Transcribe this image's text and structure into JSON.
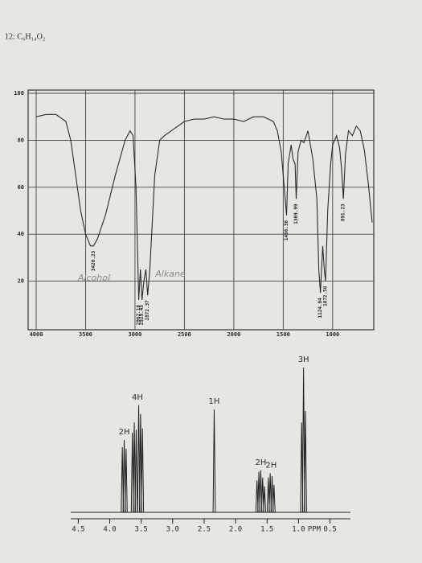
{
  "header": {
    "title": "12: C₆H₁₄O₂"
  },
  "chart_data": [
    {
      "type": "line",
      "x": [
        4000,
        3900,
        3800,
        3700,
        3650,
        3600,
        3550,
        3500,
        3450,
        3420,
        3380,
        3300,
        3200,
        3100,
        3050,
        3020,
        2990,
        2962,
        2945,
        2929,
        2910,
        2890,
        2872,
        2850,
        2800,
        2750,
        2700,
        2600,
        2500,
        2400,
        2300,
        2200,
        2100,
        2000,
        1900,
        1800,
        1700,
        1600,
        1560,
        1520,
        1490,
        1466,
        1450,
        1420,
        1400,
        1380,
        1369,
        1350,
        1320,
        1290,
        1250,
        1200,
        1160,
        1140,
        1124,
        1100,
        1085,
        1072,
        1050,
        1020,
        1000,
        960,
        930,
        910,
        891,
        870,
        840,
        800,
        760,
        720,
        680,
        640,
        600
      ],
      "values": [
        90,
        91,
        91,
        88,
        80,
        65,
        50,
        40,
        35,
        35,
        38,
        48,
        65,
        80,
        84,
        82,
        60,
        12,
        25,
        12,
        20,
        25,
        14,
        25,
        65,
        80,
        82,
        85,
        88,
        89,
        89,
        90,
        89,
        89,
        88,
        90,
        90,
        88,
        84,
        75,
        60,
        48,
        70,
        78,
        72,
        70,
        55,
        75,
        80,
        79,
        84,
        72,
        55,
        25,
        15,
        35,
        25,
        20,
        50,
        70,
        78,
        82,
        77,
        68,
        55,
        74,
        84,
        82,
        86,
        84,
        76,
        62,
        45
      ],
      "color": "#2b2b2b",
      "xlim": [
        4000,
        600
      ],
      "ylim": [
        0,
        100
      ],
      "xticks": [
        4000,
        3500,
        3000,
        2500,
        2000,
        1500,
        1000
      ],
      "yticks": [
        20,
        40,
        60,
        80,
        100
      ],
      "grid": true,
      "peaks": {
        "x": [
          3420.23,
          2962.18,
          2929.45,
          2872.37,
          1466.36,
          1369.99,
          1124.84,
          1072.56,
          891.23
        ],
        "y": [
          35,
          12,
          12,
          14,
          48,
          55,
          15,
          20,
          55
        ]
      },
      "annotations": [
        "Alcohol",
        "Alkane"
      ]
    },
    {
      "type": "nmr",
      "color": "#1e1e1e",
      "xlim": [
        4.62,
        0.2
      ],
      "ylim": [
        0,
        100
      ],
      "xticks": [
        4.5,
        {
          "value": 4,
          "label": "4.0"
        },
        3.5,
        {
          "value": 3,
          "label": "3.0"
        },
        2.5,
        {
          "value": 2,
          "label": "2.0"
        },
        1.5,
        {
          "value": 1,
          "label": "1.0"
        },
        0.5
      ],
      "x_label": "PPM",
      "multiplets": [
        {
          "label": "2H",
          "ppm": [
            3.8,
            3.77,
            3.74
          ],
          "height": [
            45,
            50,
            44
          ]
        },
        {
          "label": "4H",
          "ppm": [
            3.64,
            3.61,
            3.58,
            3.54,
            3.51,
            3.48
          ],
          "height": [
            55,
            62,
            57,
            74,
            68,
            58
          ]
        },
        {
          "label": "1H",
          "ppm": [
            2.34
          ],
          "height": [
            71
          ]
        },
        {
          "label": "2H",
          "ppm": [
            1.66,
            1.63,
            1.6,
            1.57,
            1.54
          ],
          "height": [
            22,
            28,
            29,
            24,
            18
          ]
        },
        {
          "label": "2H",
          "ppm": [
            1.48,
            1.45,
            1.42,
            1.39
          ],
          "height": [
            24,
            27,
            25,
            19
          ]
        },
        {
          "label": "3H",
          "ppm": [
            0.95,
            0.92,
            0.89
          ],
          "height": [
            62,
            100,
            70
          ]
        }
      ]
    }
  ]
}
